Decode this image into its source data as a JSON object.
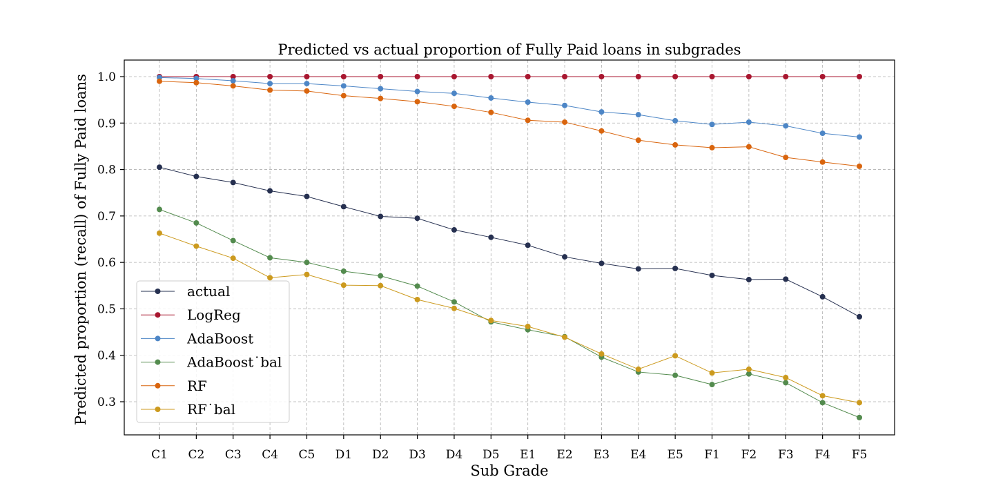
{
  "chart_data": {
    "type": "line",
    "title": "Predicted vs actual proportion of Fully Paid loans in subgrades",
    "xlabel": "Sub Grade",
    "ylabel": "Predicted proportion (recall) of Fully Paid loans",
    "categories": [
      "C1",
      "C2",
      "C3",
      "C4",
      "C5",
      "D1",
      "D2",
      "D3",
      "D4",
      "D5",
      "E1",
      "E2",
      "E3",
      "E4",
      "E5",
      "F1",
      "F2",
      "F3",
      "F4",
      "F5"
    ],
    "ylim": [
      0.23,
      1.036
    ],
    "yticks": [
      0.3,
      0.4,
      0.5,
      0.6,
      0.7,
      0.8,
      0.9,
      1.0
    ],
    "ytick_labels": [
      "0.3",
      "0.4",
      "0.5",
      "0.6",
      "0.7",
      "0.8",
      "0.9",
      "1.0"
    ],
    "grid": true,
    "legend_position": "lower-left",
    "series": [
      {
        "name": "actual",
        "color": "#263050",
        "values": [
          0.805,
          0.785,
          0.772,
          0.754,
          0.742,
          0.72,
          0.699,
          0.695,
          0.67,
          0.654,
          0.637,
          0.612,
          0.598,
          0.586,
          0.587,
          0.572,
          0.563,
          0.564,
          0.526,
          0.483
        ]
      },
      {
        "name": "LogReg",
        "color": "#a8162f",
        "values": [
          1.0,
          1.0,
          1.0,
          1.0,
          1.0,
          1.0,
          1.0,
          1.0,
          1.0,
          1.0,
          1.0,
          1.0,
          1.0,
          1.0,
          1.0,
          1.0,
          1.0,
          1.0,
          1.0,
          1.0
        ]
      },
      {
        "name": "AdaBoost",
        "color": "#4d86c6",
        "values": [
          0.998,
          0.996,
          0.991,
          0.985,
          0.985,
          0.98,
          0.974,
          0.968,
          0.964,
          0.954,
          0.945,
          0.938,
          0.924,
          0.918,
          0.905,
          0.897,
          0.902,
          0.894,
          0.878,
          0.87
        ]
      },
      {
        "name": "AdaBoost˙bal",
        "color": "#538b4e",
        "values": [
          0.714,
          0.685,
          0.647,
          0.61,
          0.6,
          0.581,
          0.571,
          0.549,
          0.515,
          0.472,
          0.455,
          0.44,
          0.396,
          0.364,
          0.357,
          0.337,
          0.36,
          0.341,
          0.298,
          0.266
        ]
      },
      {
        "name": "RF",
        "color": "#d9650e",
        "values": [
          0.99,
          0.987,
          0.98,
          0.971,
          0.969,
          0.959,
          0.953,
          0.946,
          0.936,
          0.923,
          0.906,
          0.902,
          0.883,
          0.863,
          0.853,
          0.847,
          0.849,
          0.826,
          0.816,
          0.807
        ]
      },
      {
        "name": "RF˙bal",
        "color": "#cc9a1e",
        "values": [
          0.663,
          0.635,
          0.609,
          0.567,
          0.574,
          0.551,
          0.55,
          0.52,
          0.501,
          0.475,
          0.462,
          0.439,
          0.403,
          0.37,
          0.399,
          0.362,
          0.37,
          0.352,
          0.313,
          0.298
        ]
      }
    ]
  }
}
